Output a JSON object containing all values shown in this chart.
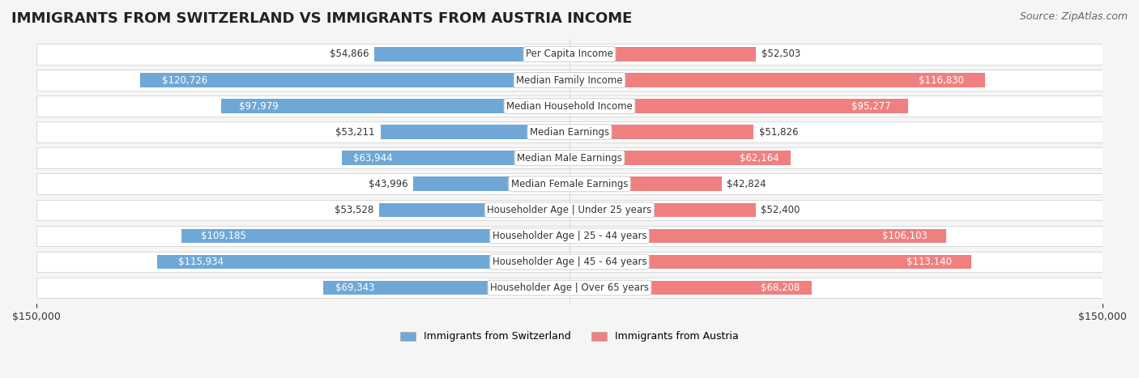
{
  "title": "IMMIGRANTS FROM SWITZERLAND VS IMMIGRANTS FROM AUSTRIA INCOME",
  "source": "Source: ZipAtlas.com",
  "categories": [
    "Per Capita Income",
    "Median Family Income",
    "Median Household Income",
    "Median Earnings",
    "Median Male Earnings",
    "Median Female Earnings",
    "Householder Age | Under 25 years",
    "Householder Age | 25 - 44 years",
    "Householder Age | 45 - 64 years",
    "Householder Age | Over 65 years"
  ],
  "switzerland_values": [
    54866,
    120726,
    97979,
    53211,
    63944,
    43996,
    53528,
    109185,
    115934,
    69343
  ],
  "austria_values": [
    52503,
    116830,
    95277,
    51826,
    62164,
    42824,
    52400,
    106103,
    113140,
    68208
  ],
  "switzerland_color": "#6fa8d6",
  "austria_color": "#f08080",
  "switzerland_label": "Immigrants from Switzerland",
  "austria_label": "Immigrants from Austria",
  "max_val": 150000,
  "background_color": "#f5f5f5",
  "row_bg_color": "#ffffff",
  "label_bg_color": "#ffffff",
  "title_fontsize": 13,
  "source_fontsize": 9,
  "bar_label_fontsize": 8.5,
  "category_fontsize": 8.5,
  "axis_label_fontsize": 9
}
